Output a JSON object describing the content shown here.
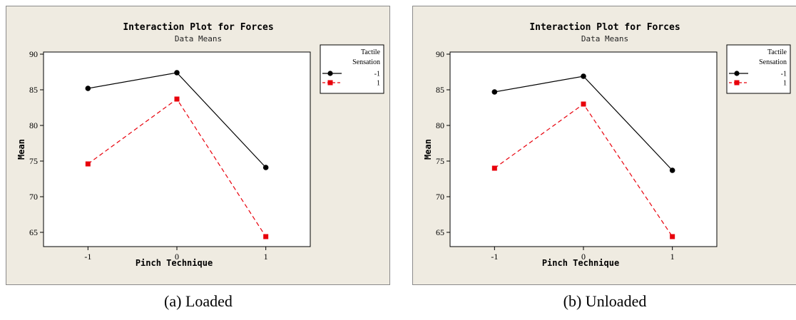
{
  "colors": {
    "frame_bg": "#efebe1",
    "plot_bg": "#ffffff",
    "series_neg": "#000000",
    "series_pos": "#e8000b"
  },
  "chart_data": [
    {
      "type": "line",
      "title": "Interaction Plot for Forces",
      "subtitle": "Data Means",
      "xlabel": "Pinch Technique",
      "ylabel": "Mean",
      "x": [
        -1,
        0,
        1
      ],
      "x_tick_labels": [
        "-1",
        "0",
        "1"
      ],
      "xlim": [
        -1.5,
        1.5
      ],
      "ylim": [
        63,
        90.3
      ],
      "y_ticks": [
        65,
        70,
        75,
        80,
        85,
        90
      ],
      "y_tick_labels": [
        "65",
        "70",
        "75",
        "80",
        "85",
        "90"
      ],
      "legend": {
        "title": [
          "Tactile",
          "Sensation"
        ],
        "placement": "right"
      },
      "series": [
        {
          "name": "-1",
          "values": [
            85.2,
            87.4,
            74.1
          ],
          "color": "#000000",
          "marker": "circle",
          "dash": "solid"
        },
        {
          "name": "1",
          "values": [
            74.6,
            83.7,
            64.4
          ],
          "color": "#e8000b",
          "marker": "square",
          "dash": "dashed"
        }
      ],
      "caption": "(a) Loaded"
    },
    {
      "type": "line",
      "title": "Interaction Plot for Forces",
      "subtitle": "Data Means",
      "xlabel": "Pinch Technique",
      "ylabel": "Mean",
      "x": [
        -1,
        0,
        1
      ],
      "x_tick_labels": [
        "-1",
        "0",
        "1"
      ],
      "xlim": [
        -1.5,
        1.5
      ],
      "ylim": [
        63,
        90.3
      ],
      "y_ticks": [
        65,
        70,
        75,
        80,
        85,
        90
      ],
      "y_tick_labels": [
        "65",
        "70",
        "75",
        "80",
        "85",
        "90"
      ],
      "legend": {
        "title": [
          "Tactile",
          "Sensation"
        ],
        "placement": "right"
      },
      "series": [
        {
          "name": "-1",
          "values": [
            84.7,
            86.9,
            73.7
          ],
          "color": "#000000",
          "marker": "circle",
          "dash": "solid"
        },
        {
          "name": "1",
          "values": [
            74.0,
            83.0,
            64.4
          ],
          "color": "#e8000b",
          "marker": "square",
          "dash": "dashed"
        }
      ],
      "caption": "(b) Unloaded"
    }
  ]
}
